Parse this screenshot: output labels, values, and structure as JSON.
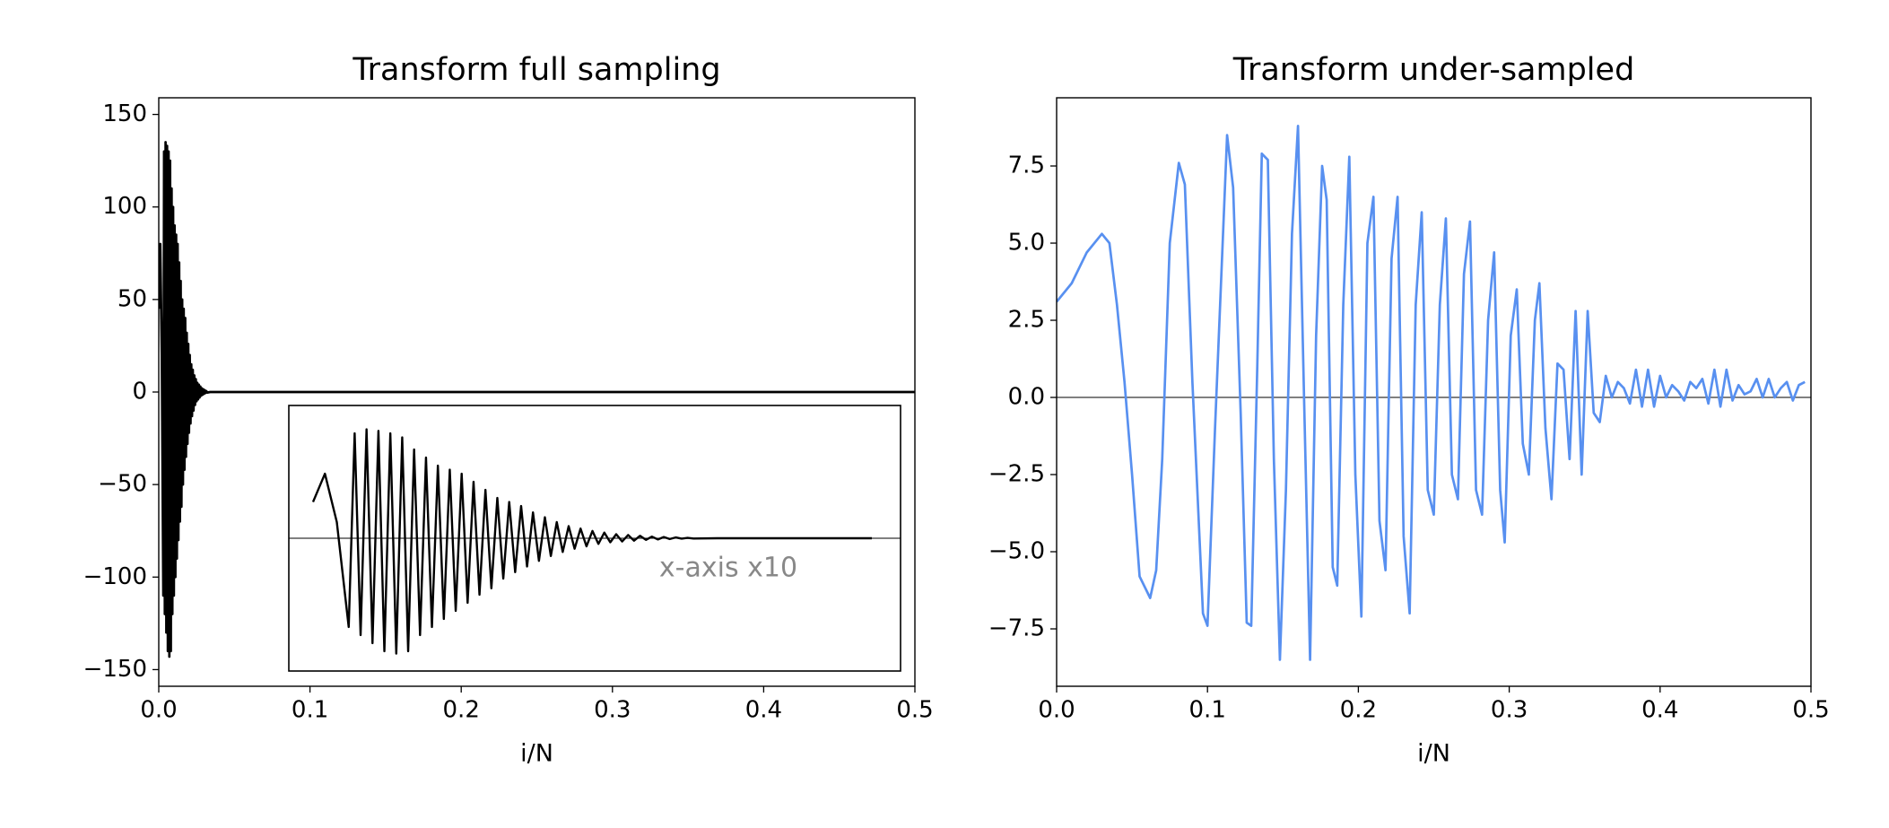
{
  "chart_data": [
    {
      "type": "line",
      "title": "Transform full sampling",
      "xlabel": "i/N",
      "color": "#000000",
      "xlim": [
        0,
        0.5
      ],
      "ylim": [
        -159,
        159
      ],
      "xticks": [
        {
          "value": 0,
          "label": "0.0"
        },
        {
          "value": 0.1,
          "label": "0.1"
        },
        {
          "value": 0.2,
          "label": "0.2"
        },
        {
          "value": 0.3,
          "label": "0.3"
        },
        {
          "value": 0.4,
          "label": "0.4"
        },
        {
          "value": 0.5,
          "label": "0.5"
        }
      ],
      "yticks": [
        {
          "value": -150,
          "label": "−150"
        },
        {
          "value": -100,
          "label": "−100"
        },
        {
          "value": -50,
          "label": "−50"
        },
        0,
        50,
        100,
        150
      ],
      "x": [
        0,
        0.001,
        0.002,
        0.003,
        0.0035,
        0.004,
        0.0045,
        0.005,
        0.0055,
        0.006,
        0.0065,
        0.007,
        0.0075,
        0.008,
        0.0085,
        0.009,
        0.0095,
        0.01,
        0.0105,
        0.011,
        0.0115,
        0.012,
        0.0125,
        0.013,
        0.0135,
        0.014,
        0.0145,
        0.015,
        0.0155,
        0.016,
        0.0165,
        0.017,
        0.0175,
        0.018,
        0.0185,
        0.019,
        0.0195,
        0.02,
        0.0205,
        0.021,
        0.0215,
        0.022,
        0.0225,
        0.023,
        0.0235,
        0.024,
        0.0245,
        0.025,
        0.0255,
        0.026,
        0.0265,
        0.027,
        0.0275,
        0.028,
        0.0285,
        0.029,
        0.0295,
        0.03,
        0.0305,
        0.031,
        0.0315,
        0.032,
        0.034,
        0.047,
        0.5
      ],
      "values": [
        45,
        80,
        20,
        -110,
        130,
        -120,
        135,
        -130,
        133,
        -140,
        130,
        -143,
        125,
        -140,
        110,
        -120,
        100,
        -110,
        90,
        -100,
        85,
        -90,
        80,
        -80,
        70,
        -70,
        60,
        -62,
        50,
        -50,
        45,
        -42,
        40,
        -35,
        32,
        -28,
        26,
        -22,
        20,
        -17,
        15,
        -13,
        12,
        -10,
        9,
        -7,
        7,
        -5,
        5,
        -4,
        4,
        -3,
        3,
        -2,
        2,
        -1.5,
        1.5,
        -1,
        1,
        -0.5,
        0.5,
        -0.3,
        0,
        0,
        0
      ],
      "inset": {
        "text": "x-axis x10"
      }
    },
    {
      "type": "line",
      "title": "Transform under-sampled",
      "xlabel": "i/N",
      "color": "#5890f0",
      "xlim": [
        0,
        0.5
      ],
      "ylim": [
        -9.36,
        9.71
      ],
      "xticks": [
        {
          "value": 0,
          "label": "0.0"
        },
        {
          "value": 0.1,
          "label": "0.1"
        },
        {
          "value": 0.2,
          "label": "0.2"
        },
        {
          "value": 0.3,
          "label": "0.3"
        },
        {
          "value": 0.4,
          "label": "0.4"
        },
        {
          "value": 0.5,
          "label": "0.5"
        }
      ],
      "yticks": [
        {
          "value": -7.5,
          "label": "−7.5"
        },
        {
          "value": -5,
          "label": "−5.0"
        },
        {
          "value": -2.5,
          "label": "−2.5"
        },
        {
          "value": 0,
          "label": "0.0"
        },
        2.5,
        {
          "value": 5,
          "label": "5.0"
        },
        7.5
      ],
      "x": [
        0,
        0.01,
        0.02,
        0.03,
        0.035,
        0.04,
        0.045,
        0.05,
        0.055,
        0.062,
        0.066,
        0.07,
        0.075,
        0.081,
        0.085,
        0.09,
        0.097,
        0.1,
        0.105,
        0.113,
        0.117,
        0.122,
        0.126,
        0.129,
        0.133,
        0.136,
        0.14,
        0.144,
        0.148,
        0.152,
        0.156,
        0.16,
        0.164,
        0.168,
        0.172,
        0.176,
        0.179,
        0.183,
        0.186,
        0.19,
        0.194,
        0.198,
        0.202,
        0.206,
        0.21,
        0.214,
        0.218,
        0.222,
        0.226,
        0.23,
        0.234,
        0.238,
        0.242,
        0.246,
        0.25,
        0.254,
        0.258,
        0.262,
        0.266,
        0.27,
        0.274,
        0.278,
        0.282,
        0.286,
        0.29,
        0.294,
        0.297,
        0.301,
        0.305,
        0.309,
        0.313,
        0.317,
        0.32,
        0.324,
        0.328,
        0.332,
        0.336,
        0.34,
        0.344,
        0.348,
        0.352,
        0.356,
        0.36,
        0.364,
        0.368,
        0.372,
        0.376,
        0.38,
        0.384,
        0.388,
        0.392,
        0.396,
        0.4,
        0.404,
        0.408,
        0.412,
        0.416,
        0.42,
        0.424,
        0.428,
        0.432,
        0.436,
        0.44,
        0.444,
        0.448,
        0.452,
        0.456,
        0.46,
        0.464,
        0.468,
        0.472,
        0.476,
        0.48,
        0.484,
        0.488,
        0.492,
        0.496
      ],
      "values": [
        3.1,
        3.7,
        4.7,
        5.3,
        5.0,
        3.0,
        0.5,
        -2.5,
        -5.8,
        -6.5,
        -5.6,
        -2.0,
        5.0,
        7.6,
        6.9,
        0.5,
        -7.0,
        -7.4,
        -1.0,
        8.5,
        6.8,
        -0.5,
        -7.3,
        -7.4,
        1.0,
        7.9,
        7.7,
        -2.0,
        -8.5,
        -3.0,
        5.3,
        8.8,
        0.0,
        -8.5,
        2.0,
        7.5,
        6.4,
        -5.5,
        -6.1,
        3.0,
        7.8,
        -2.5,
        -7.1,
        5.0,
        6.5,
        -4.0,
        -5.6,
        4.5,
        6.5,
        -4.5,
        -7.0,
        3.0,
        6.0,
        -3.0,
        -3.8,
        3.0,
        5.8,
        -2.5,
        -3.3,
        4.0,
        5.7,
        -3.0,
        -3.8,
        2.5,
        4.7,
        -3.0,
        -4.7,
        2.0,
        3.5,
        -1.5,
        -2.5,
        2.5,
        3.7,
        -1.0,
        -3.3,
        1.1,
        0.9,
        -2.0,
        2.8,
        -2.5,
        2.8,
        -0.5,
        -0.8,
        0.7,
        0.0,
        0.5,
        0.3,
        -0.2,
        0.9,
        -0.3,
        0.9,
        -0.3,
        0.7,
        0.0,
        0.4,
        0.2,
        -0.1,
        0.5,
        0.3,
        0.6,
        -0.2,
        0.9,
        -0.3,
        0.9,
        -0.1,
        0.4,
        0.1,
        0.2,
        0.6,
        0.0,
        0.6,
        0.0,
        0.3,
        0.5,
        -0.1,
        0.4,
        0.5
      ]
    }
  ]
}
